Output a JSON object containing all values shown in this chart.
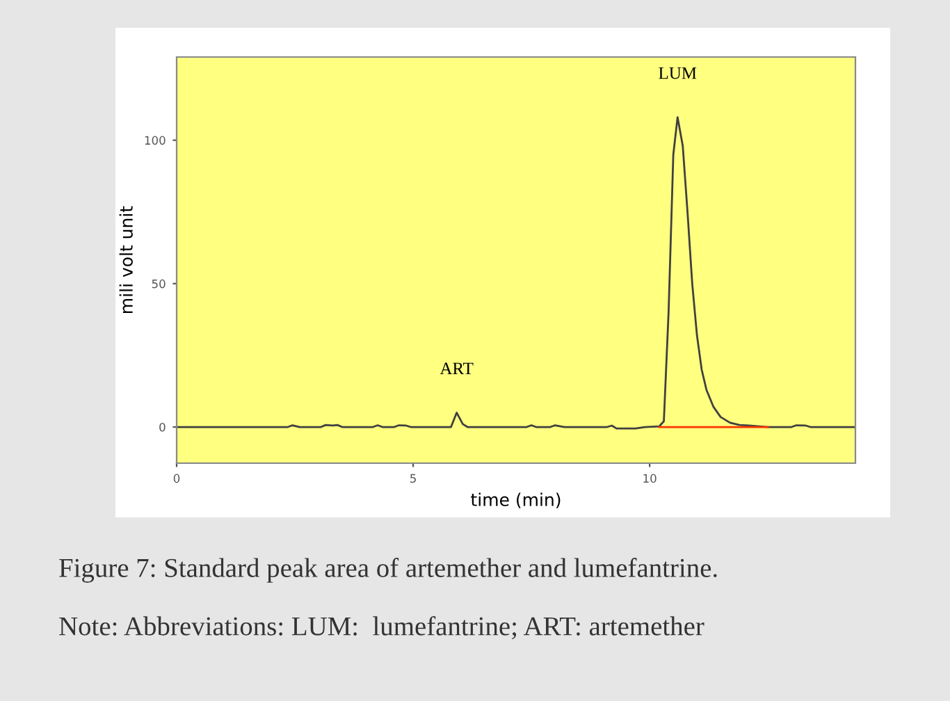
{
  "chart_data": {
    "type": "line",
    "title": "Figure 7: Standard peak area of artemether and lumefantrine.",
    "xlabel": "time (min)",
    "ylabel": "mili volt unit",
    "xlim": [
      0,
      14.35
    ],
    "ylim": [
      -12.6,
      129
    ],
    "xticks": [
      0,
      5,
      10
    ],
    "yticks": [
      0,
      50,
      100
    ],
    "grid": false,
    "legend": false,
    "marker": "none",
    "line_style": "solid",
    "series": [
      {
        "color": "#404040",
        "x": [
          0,
          2.35,
          2.45,
          2.6,
          3.05,
          3.15,
          3.3,
          3.4,
          3.5,
          4.15,
          4.25,
          4.35,
          4.6,
          4.7,
          4.85,
          4.95,
          5.8,
          5.92,
          6.05,
          6.15,
          7.4,
          7.5,
          7.6,
          7.9,
          8.0,
          8.2,
          9.1,
          9.2,
          9.3,
          9.7,
          9.9,
          10.2,
          10.3,
          10.4,
          10.5,
          10.59,
          10.7,
          10.8,
          10.9,
          11.0,
          11.1,
          11.2,
          11.35,
          11.5,
          11.7,
          11.9,
          12.1,
          12.5,
          13.0,
          13.1,
          13.3,
          13.4,
          14.35
        ],
        "values": [
          0,
          0,
          0.6,
          0,
          0,
          0.7,
          0.5,
          0.7,
          0,
          0,
          0.6,
          0,
          0,
          0.6,
          0.5,
          0,
          0,
          5,
          1,
          0,
          0,
          0.6,
          0,
          0,
          0.6,
          0,
          0,
          0.5,
          -0.5,
          -0.5,
          0,
          0.2,
          2,
          40,
          95,
          108,
          98,
          75,
          50,
          32,
          20,
          13,
          7,
          3.5,
          1.5,
          0.7,
          0.5,
          0,
          0,
          0.6,
          0.5,
          0,
          0
        ]
      },
      {
        "color": "#ff3300",
        "x": [
          10.2,
          12.5
        ],
        "values": [
          0,
          0
        ]
      }
    ],
    "annotations": [
      {
        "text": "ART",
        "x": 5.92,
        "y": 5
      },
      {
        "text": "LUM",
        "x": 10.59,
        "y": 108
      },
      "Note: Abbreviations: LUM:  lumefantrine; ART: artemether"
    ]
  }
}
